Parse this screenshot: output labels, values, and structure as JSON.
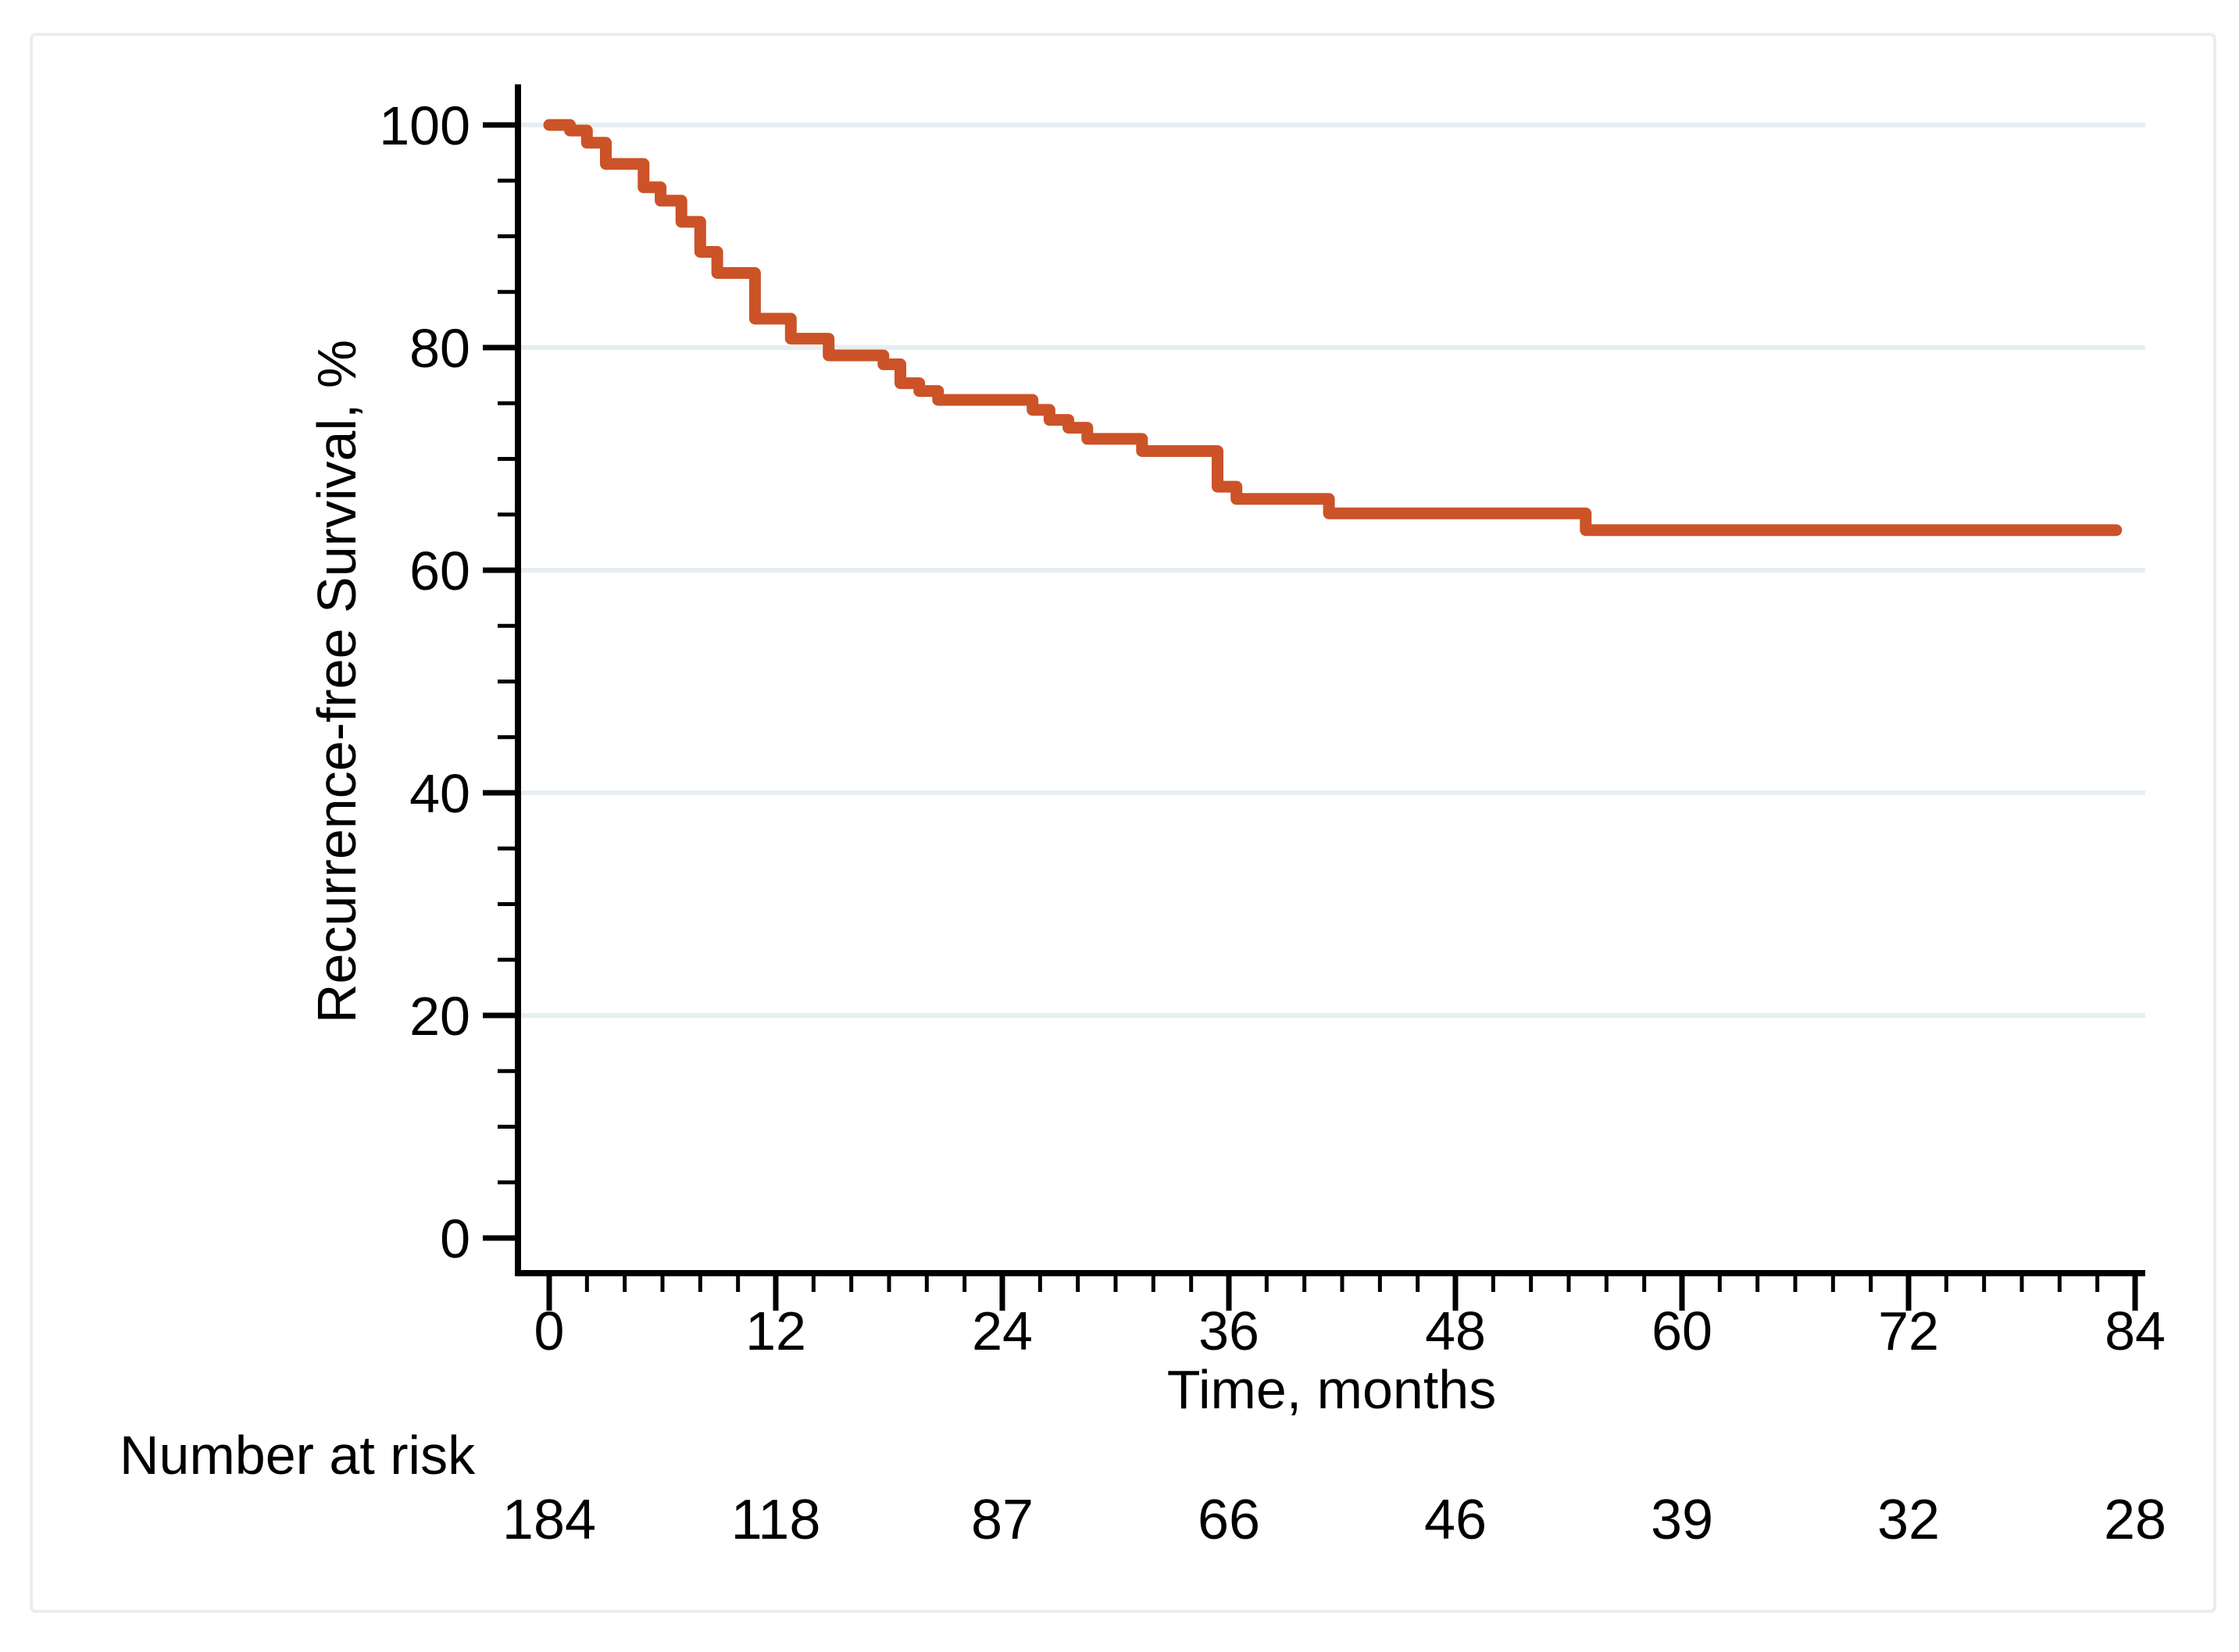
{
  "figure": {
    "background_color": "#ffffff",
    "border_color": "#e8edf1"
  },
  "chart_data": {
    "type": "line",
    "subtype": "kaplan-meier-step",
    "title": "",
    "xlabel": "Time, months",
    "ylabel": "Recurrence-free Survival, %",
    "xlim": [
      0,
      84
    ],
    "ylim": [
      0,
      100
    ],
    "x_ticks": [
      0,
      12,
      24,
      36,
      48,
      60,
      72,
      84
    ],
    "x_minor_tick_step": 2,
    "y_ticks": [
      0,
      20,
      40,
      60,
      80,
      100
    ],
    "y_minor_tick_step": 5,
    "grid_y_values": [
      20,
      40,
      60,
      80,
      100
    ],
    "grid_on": true,
    "legend": "none",
    "line_color": "#cb5327",
    "grid_color": "#e7eef1",
    "axis_color": "#000000",
    "series": [
      {
        "name": "Recurrence-free survival",
        "steps": [
          [
            0,
            100
          ],
          [
            1.1,
            99.5
          ],
          [
            2.0,
            98.4
          ],
          [
            3.0,
            96.5
          ],
          [
            5.0,
            94.4
          ],
          [
            5.9,
            93.2
          ],
          [
            7.0,
            91.3
          ],
          [
            8.0,
            88.6
          ],
          [
            8.9,
            86.7
          ],
          [
            10.9,
            82.6
          ],
          [
            12.8,
            80.8
          ],
          [
            14.8,
            79.3
          ],
          [
            17.7,
            78.5
          ],
          [
            18.6,
            76.8
          ],
          [
            19.6,
            76.1
          ],
          [
            20.6,
            75.3
          ],
          [
            25.6,
            74.4
          ],
          [
            26.5,
            73.5
          ],
          [
            27.5,
            72.8
          ],
          [
            28.5,
            71.8
          ],
          [
            31.4,
            70.7
          ],
          [
            35.4,
            67.5
          ],
          [
            36.4,
            66.4
          ],
          [
            41.3,
            65.1
          ],
          [
            54.9,
            63.6
          ]
        ],
        "end_time": 83
      }
    ],
    "number_at_risk": {
      "label": "Number at risk",
      "times": [
        0,
        12,
        24,
        36,
        48,
        60,
        72,
        84
      ],
      "counts": [
        184,
        118,
        87,
        66,
        46,
        39,
        32,
        28
      ]
    }
  }
}
